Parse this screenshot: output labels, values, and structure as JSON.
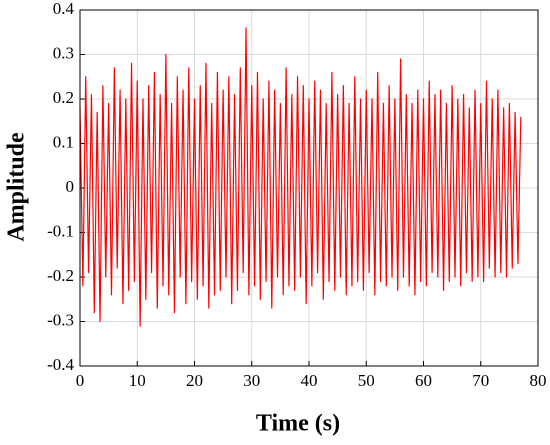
{
  "chart_data": {
    "type": "line",
    "xlabel": "Time (s)",
    "ylabel": "Amplitude",
    "xlim": [
      0,
      80
    ],
    "xticks": [
      0,
      10,
      20,
      30,
      40,
      50,
      60,
      70,
      80
    ],
    "ylim": [
      -0.4,
      0.4
    ],
    "yticks": [
      -0.4,
      -0.3,
      -0.2,
      -0.1,
      0,
      0.1,
      0.2,
      0.3,
      0.4
    ],
    "grid": true,
    "x": [
      0,
      0.5,
      1,
      1.5,
      2,
      2.5,
      3,
      3.5,
      4,
      4.5,
      5,
      5.5,
      6,
      6.5,
      7,
      7.5,
      8,
      8.5,
      9,
      9.5,
      10,
      10.5,
      11,
      11.5,
      12,
      12.5,
      13,
      13.5,
      14,
      14.5,
      15,
      15.5,
      16,
      16.5,
      17,
      17.5,
      18,
      18.5,
      19,
      19.5,
      20,
      20.5,
      21,
      21.5,
      22,
      22.5,
      23,
      23.5,
      24,
      24.5,
      25,
      25.5,
      26,
      26.5,
      27,
      27.5,
      28,
      28.5,
      29,
      29.5,
      30,
      30.5,
      31,
      31.5,
      32,
      32.5,
      33,
      33.5,
      34,
      34.5,
      35,
      35.5,
      36,
      36.5,
      37,
      37.5,
      38,
      38.5,
      39,
      39.5,
      40,
      40.5,
      41,
      41.5,
      42,
      42.5,
      43,
      43.5,
      44,
      44.5,
      45,
      45.5,
      46,
      46.5,
      47,
      47.5,
      48,
      48.5,
      49,
      49.5,
      50,
      50.5,
      51,
      51.5,
      52,
      52.5,
      53,
      53.5,
      54,
      54.5,
      55,
      55.5,
      56,
      56.5,
      57,
      57.5,
      58,
      58.5,
      59,
      59.5,
      60,
      60.5,
      61,
      61.5,
      62,
      62.5,
      63,
      63.5,
      64,
      64.5,
      65,
      65.5,
      66,
      66.5,
      67,
      67.5,
      68,
      68.5,
      69,
      69.5,
      70,
      70.5,
      71,
      71.5,
      72,
      72.5,
      73,
      73.5,
      74,
      74.5,
      75,
      75.5,
      76,
      76.5,
      77
    ],
    "series": [
      {
        "color": "#ff0000",
        "values": [
          0.18,
          -0.22,
          0.25,
          -0.19,
          0.21,
          -0.28,
          0.17,
          -0.3,
          0.23,
          -0.2,
          0.19,
          -0.24,
          0.27,
          -0.18,
          0.22,
          -0.26,
          0.2,
          -0.23,
          0.28,
          -0.21,
          0.24,
          -0.31,
          0.2,
          -0.25,
          0.23,
          -0.19,
          0.26,
          -0.27,
          0.21,
          -0.22,
          0.3,
          -0.24,
          0.19,
          -0.28,
          0.25,
          -0.2,
          0.22,
          -0.26,
          0.27,
          -0.21,
          0.2,
          -0.25,
          0.23,
          -0.22,
          0.28,
          -0.27,
          0.19,
          -0.24,
          0.26,
          -0.23,
          0.22,
          -0.2,
          0.25,
          -0.26,
          0.21,
          -0.23,
          0.27,
          -0.19,
          0.36,
          -0.24,
          0.23,
          -0.22,
          0.26,
          -0.25,
          0.2,
          -0.21,
          0.24,
          -0.27,
          0.22,
          -0.2,
          0.19,
          -0.24,
          0.27,
          -0.22,
          0.21,
          -0.23,
          0.25,
          -0.2,
          0.23,
          -0.26,
          0.2,
          -0.22,
          0.24,
          -0.19,
          0.22,
          -0.25,
          0.19,
          -0.21,
          0.26,
          -0.23,
          0.21,
          -0.2,
          0.23,
          -0.24,
          0.19,
          -0.22,
          0.25,
          -0.21,
          0.2,
          -0.23,
          0.22,
          -0.19,
          0.2,
          -0.24,
          0.26,
          -0.21,
          0.19,
          -0.22,
          0.23,
          -0.2,
          0.2,
          -0.23,
          0.29,
          -0.2,
          0.21,
          -0.22,
          0.19,
          -0.24,
          0.22,
          -0.21,
          0.2,
          -0.22,
          0.24,
          -0.19,
          0.21,
          -0.2,
          0.22,
          -0.23,
          0.19,
          -0.21,
          0.23,
          -0.2,
          0.2,
          -0.22,
          0.21,
          -0.19,
          0.18,
          -0.21,
          0.22,
          -0.2,
          0.19,
          -0.21,
          0.24,
          -0.18,
          0.2,
          -0.2,
          0.22,
          -0.19,
          0.18,
          -0.2,
          0.19,
          -0.18,
          0.17,
          -0.17,
          0.16
        ]
      }
    ]
  }
}
